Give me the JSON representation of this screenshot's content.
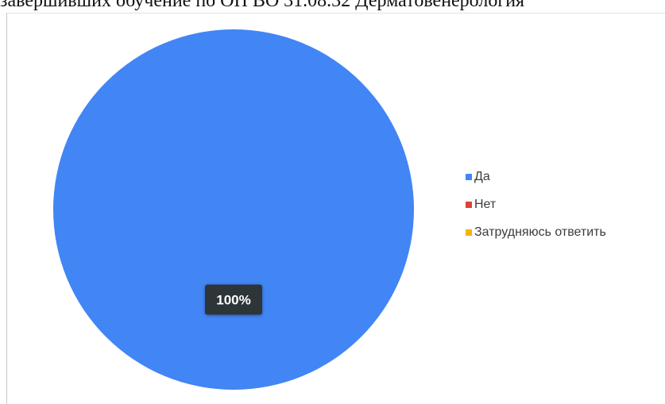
{
  "header": {
    "title_fragment": "завершивших обучение по ОП ВО 31.08.32 Дерматовенерология"
  },
  "chart_data": {
    "type": "pie",
    "categories": [
      "Да",
      "Нет",
      "Затрудняюсь ответить"
    ],
    "values": [
      100,
      0,
      0
    ],
    "unit": "%",
    "data_labels": [
      "100%"
    ],
    "colors": [
      "#4285f4",
      "#db4437",
      "#f4b400"
    ],
    "legend_position": "right"
  }
}
